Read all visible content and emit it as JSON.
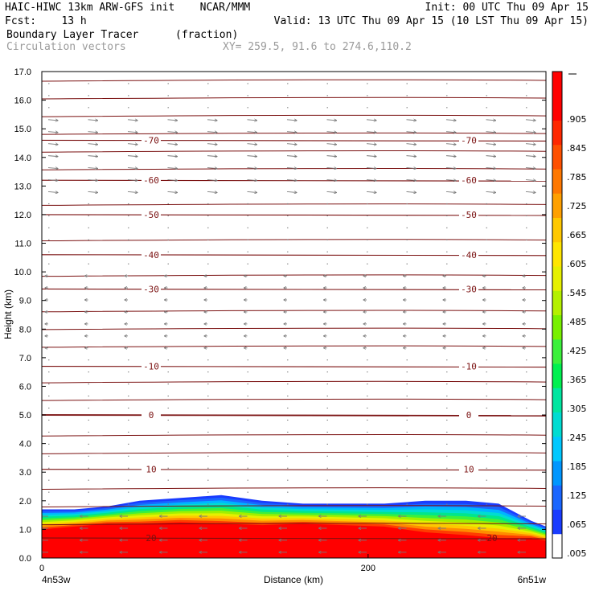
{
  "header": {
    "line1_left": "HAIC-HIWC 13km ARW-GFS init    NCAR/MMM",
    "line1_right": "Init: 00 UTC Thu 09 Apr 15",
    "line2_left": "Fcst:    13 h",
    "line2_right": "Valid: 13 UTC Thu 09 Apr 15 (10 LST Thu 09 Apr 15)",
    "field_name": "Boundary Layer Tracer",
    "field_units": "(fraction)",
    "vector_label": "Circulation vectors",
    "xy_label": "XY= 259.5, 91.6 to 274.6,110.2"
  },
  "colors": {
    "isotherm": "#7a1010",
    "vector": "#7a7a7a",
    "tracer_high": "#ff0000"
  },
  "chart_data": {
    "type": "area",
    "xlabel": "Distance (km)",
    "ylabel": "Height (km)",
    "xlim": [
      0,
      309
    ],
    "ylim": [
      0,
      17
    ],
    "x_ticks": [
      0,
      200
    ],
    "x_tick_labels": [
      "0",
      "200"
    ],
    "x_endpoint_labels": [
      "4n53w",
      "6n51w"
    ],
    "y_ticks": [
      0,
      1,
      2,
      3,
      4,
      5,
      6,
      7,
      8,
      9,
      10,
      11,
      12,
      13,
      14,
      15,
      16,
      17
    ],
    "y_tick_labels": [
      "0.0",
      "1.0",
      "2.0",
      "3.0",
      "4.0",
      "5.0",
      "6.0",
      "7.0",
      "8.0",
      "9.0",
      "10.0",
      "11.0",
      "12.0",
      "13.0",
      "14.0",
      "15.0",
      "16.0",
      "17.0"
    ],
    "colorbar_labels": [
      ".005",
      ".065",
      ".125",
      ".185",
      ".245",
      ".305",
      ".365",
      ".425",
      ".485",
      ".545",
      ".605",
      ".665",
      ".725",
      ".785",
      ".845",
      ".905"
    ],
    "isotherms": [
      {
        "label": "-70",
        "height": 14.6
      },
      {
        "label": "-60",
        "height": 13.2
      },
      {
        "label": "-50",
        "height": 12.0
      },
      {
        "label": "-40",
        "height": 10.6
      },
      {
        "label": "-30",
        "height": 9.4
      },
      {
        "label": "-10",
        "height": 6.7
      },
      {
        "label": "0",
        "height": 5.0
      },
      {
        "label": "10",
        "height": 3.1
      },
      {
        "label": "20",
        "height": 0.7
      }
    ],
    "tracer_top_profile": {
      "x": [
        0,
        20,
        40,
        60,
        85,
        110,
        135,
        160,
        185,
        210,
        235,
        260,
        280,
        300,
        309
      ],
      "fraction_005_top": [
        1.7,
        1.7,
        1.8,
        2.0,
        2.1,
        2.2,
        2.0,
        1.9,
        1.9,
        1.9,
        2.0,
        2.0,
        1.9,
        1.3,
        1.1
      ],
      "fraction_905_top": [
        1.0,
        1.1,
        1.2,
        1.2,
        1.25,
        1.2,
        1.15,
        1.2,
        1.15,
        1.1,
        0.9,
        0.8,
        0.7,
        0.7,
        0.6
      ]
    }
  }
}
